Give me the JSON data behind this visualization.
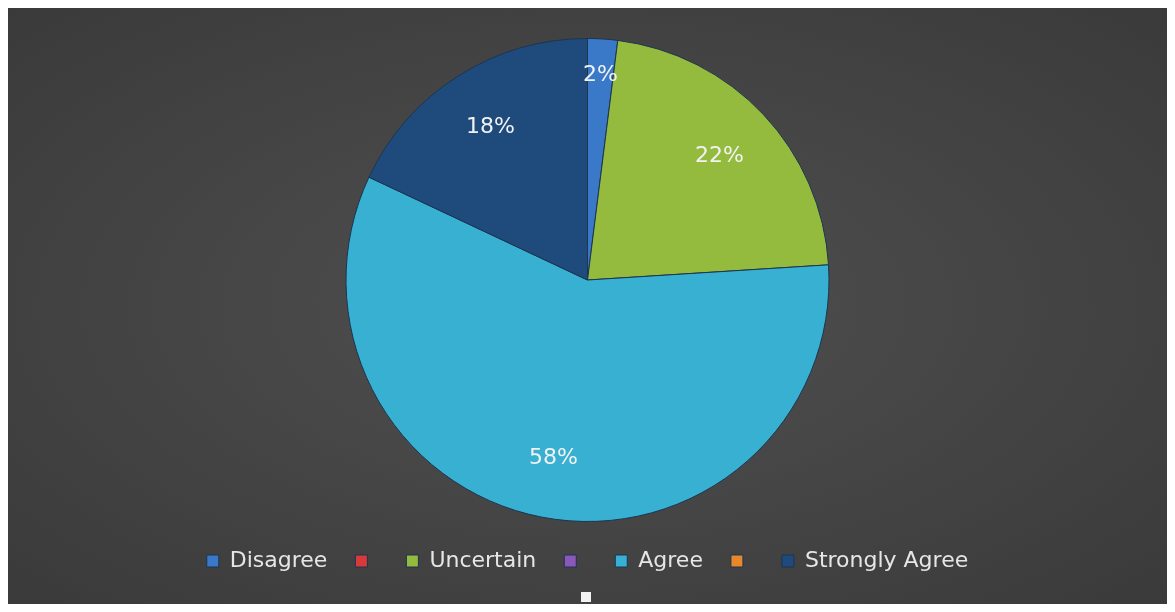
{
  "chart_data": {
    "type": "pie",
    "categories": [
      "Disagree",
      null,
      "Uncertain",
      null,
      "Agree",
      null,
      "Strongly Agree"
    ],
    "values": [
      2,
      0,
      22,
      0,
      58,
      0,
      18
    ],
    "colors": [
      "#3a78c8",
      "#d83a3a",
      "#94bb3e",
      "#8a58b8",
      "#38b0d2",
      "#e8882a",
      "#1f4a7c"
    ],
    "value_labels": [
      "2%",
      null,
      "22%",
      null,
      "58%",
      null,
      "18%"
    ],
    "legend": "bottom"
  }
}
